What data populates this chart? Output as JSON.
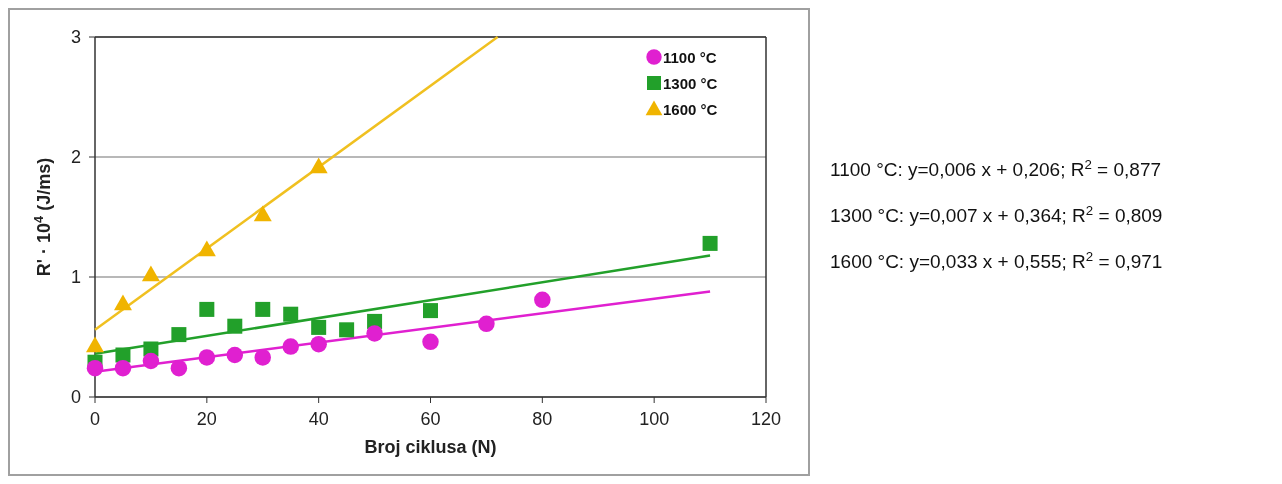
{
  "chart_data": {
    "type": "scatter",
    "xlabel": "Broj ciklusa (N)",
    "ylabel": "R' · 10$^{4}$ (J/ms)",
    "xlim": [
      0,
      120
    ],
    "xticks": [
      0,
      20,
      40,
      60,
      80,
      100,
      120
    ],
    "ylim": [
      0,
      3
    ],
    "yticks": [
      0,
      1,
      2,
      3
    ],
    "grid": "y",
    "legend": "top right",
    "series": [
      {
        "name": "1100 °C",
        "marker": "circle",
        "color": "#e020d0",
        "x": [
          0,
          5,
          10,
          15,
          20,
          25,
          30,
          35,
          40,
          50,
          60,
          70,
          80
        ],
        "values": [
          0.24,
          0.24,
          0.3,
          0.24,
          0.33,
          0.35,
          0.33,
          0.42,
          0.44,
          0.53,
          0.46,
          0.61,
          0.81
        ]
      },
      {
        "name": "1300 °C",
        "marker": "square",
        "color": "#22a02a",
        "x": [
          0,
          5,
          10,
          15,
          20,
          25,
          30,
          35,
          40,
          45,
          50,
          60,
          110
        ],
        "values": [
          0.29,
          0.35,
          0.4,
          0.52,
          0.73,
          0.59,
          0.73,
          0.69,
          0.58,
          0.56,
          0.63,
          0.72,
          1.28
        ]
      },
      {
        "name": "1600 °C",
        "marker": "triangle",
        "color": "#f0b400",
        "x": [
          0,
          5,
          10,
          20,
          30,
          40
        ],
        "values": [
          0.43,
          0.78,
          1.02,
          1.23,
          1.52,
          1.92
        ]
      },
      {
        "type": "line",
        "color": "#e020d0",
        "x": [
          0,
          110
        ],
        "values": [
          0.21,
          0.88
        ]
      },
      {
        "type": "line",
        "color": "#22a02a",
        "x": [
          0,
          110
        ],
        "values": [
          0.36,
          1.18
        ]
      },
      {
        "type": "line",
        "color": "#f0c020",
        "x": [
          0,
          72
        ],
        "values": [
          0.56,
          3
        ]
      }
    ],
    "annotations": [
      "1100 °C: y=0,006 x + 0,206; R$^{2}$ = 0,877",
      "1300 °C: y=0,007 x + 0,364; R$^{2}$ = 0,809",
      "1600 °C: y=0,033 x + 0,555; R$^{2}$ = 0,971"
    ]
  }
}
